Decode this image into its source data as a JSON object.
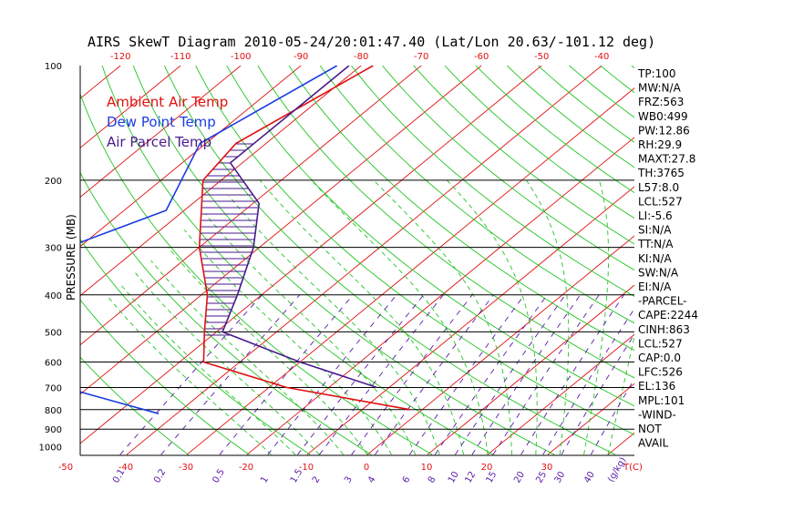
{
  "chart_data": {
    "type": "line",
    "chart_kind": "skew-t log-p diagram",
    "title": "AIRS SkewT Diagram 2010-05-24/20:01:47.40 (Lat/Lon 20.63/-101.12 deg)",
    "ylabel": "PRESSURE (MB)",
    "xlabel": "T(C)",
    "mixing_ratio_label": "(g/kg)",
    "pressure_levels": [
      100,
      200,
      300,
      400,
      500,
      600,
      700,
      800,
      900,
      1000
    ],
    "pressure_lines": [
      200,
      300,
      400,
      500,
      600,
      700,
      800,
      900
    ],
    "ylim": [
      1050,
      100
    ],
    "y_scale": "log",
    "top_temp_ticks": [
      -120,
      -110,
      -100,
      -90,
      -80,
      -70,
      -60,
      -50,
      -40
    ],
    "bottom_temp_ticks": [
      -50,
      -40,
      -30,
      -20,
      -10,
      0,
      10,
      20,
      30
    ],
    "mixing_ratio_ticks": [
      "0.1",
      "0.2",
      "0.5",
      "1",
      "1.5",
      "2",
      "3",
      "4",
      "6",
      "8",
      "10",
      "12",
      "15",
      "20",
      "25",
      "30",
      "40"
    ],
    "legend": [
      {
        "name": "Ambient Air Temp",
        "color": "#e01010"
      },
      {
        "name": "Dew Point Temp",
        "color": "#1a3ce0"
      },
      {
        "name": "Air Parcel Temp",
        "color": "#4a1a8c"
      }
    ],
    "series": [
      {
        "name": "Ambient Air Temp",
        "color": "#e01010",
        "points": [
          [
            -78,
            100
          ],
          [
            -85,
            160
          ],
          [
            -83,
            200
          ],
          [
            -70,
            300
          ],
          [
            -59,
            400
          ],
          [
            -52,
            500
          ],
          [
            -46,
            600
          ],
          [
            -27,
            700
          ],
          [
            -2,
            800
          ]
        ]
      },
      {
        "name": "Dew Point Temp",
        "color": "#1a3ce0",
        "points": [
          [
            -84,
            100
          ],
          [
            -91,
            160
          ],
          [
            -83,
            240
          ],
          [
            -92,
            300
          ],
          [
            -94,
            400
          ],
          [
            -76,
            520
          ],
          [
            -73,
            600
          ],
          [
            -64,
            700
          ],
          [
            -43,
            820
          ]
        ]
      },
      {
        "name": "Air Parcel Temp",
        "color": "#4a1a8c",
        "points": [
          [
            -82,
            100
          ],
          [
            -82,
            180
          ],
          [
            -69,
            230
          ],
          [
            -61,
            300
          ],
          [
            -54,
            400
          ],
          [
            -49,
            500
          ],
          [
            -30,
            600
          ],
          [
            -12,
            700
          ]
        ]
      }
    ],
    "cape_hatch_range": [
      160,
      530
    ],
    "stats": [
      "TP:100",
      "MW:N/A",
      "FRZ:563",
      "WB0:499",
      "PW:12.86",
      "RH:29.9",
      "MAXT:27.8",
      "TH:3765",
      "L57:8.0",
      "LCL:527",
      "LI:-5.6",
      "SI:N/A",
      "TT:N/A",
      "KI:N/A",
      "SW:N/A",
      "EI:N/A",
      "-PARCEL-",
      "CAPE:2244",
      "CINH:863",
      "LCL:527",
      "CAP:0.0",
      "LFC:526",
      "EL:136",
      "MPL:101",
      "-WIND-",
      "NOT",
      "AVAIL"
    ],
    "colors": {
      "isotherm": "#e01010",
      "dry_adiabat": "#22c422",
      "moist_adiabat": "#22c422",
      "mixing_ratio": "#5a1aa8",
      "isobar": "#000000"
    }
  }
}
